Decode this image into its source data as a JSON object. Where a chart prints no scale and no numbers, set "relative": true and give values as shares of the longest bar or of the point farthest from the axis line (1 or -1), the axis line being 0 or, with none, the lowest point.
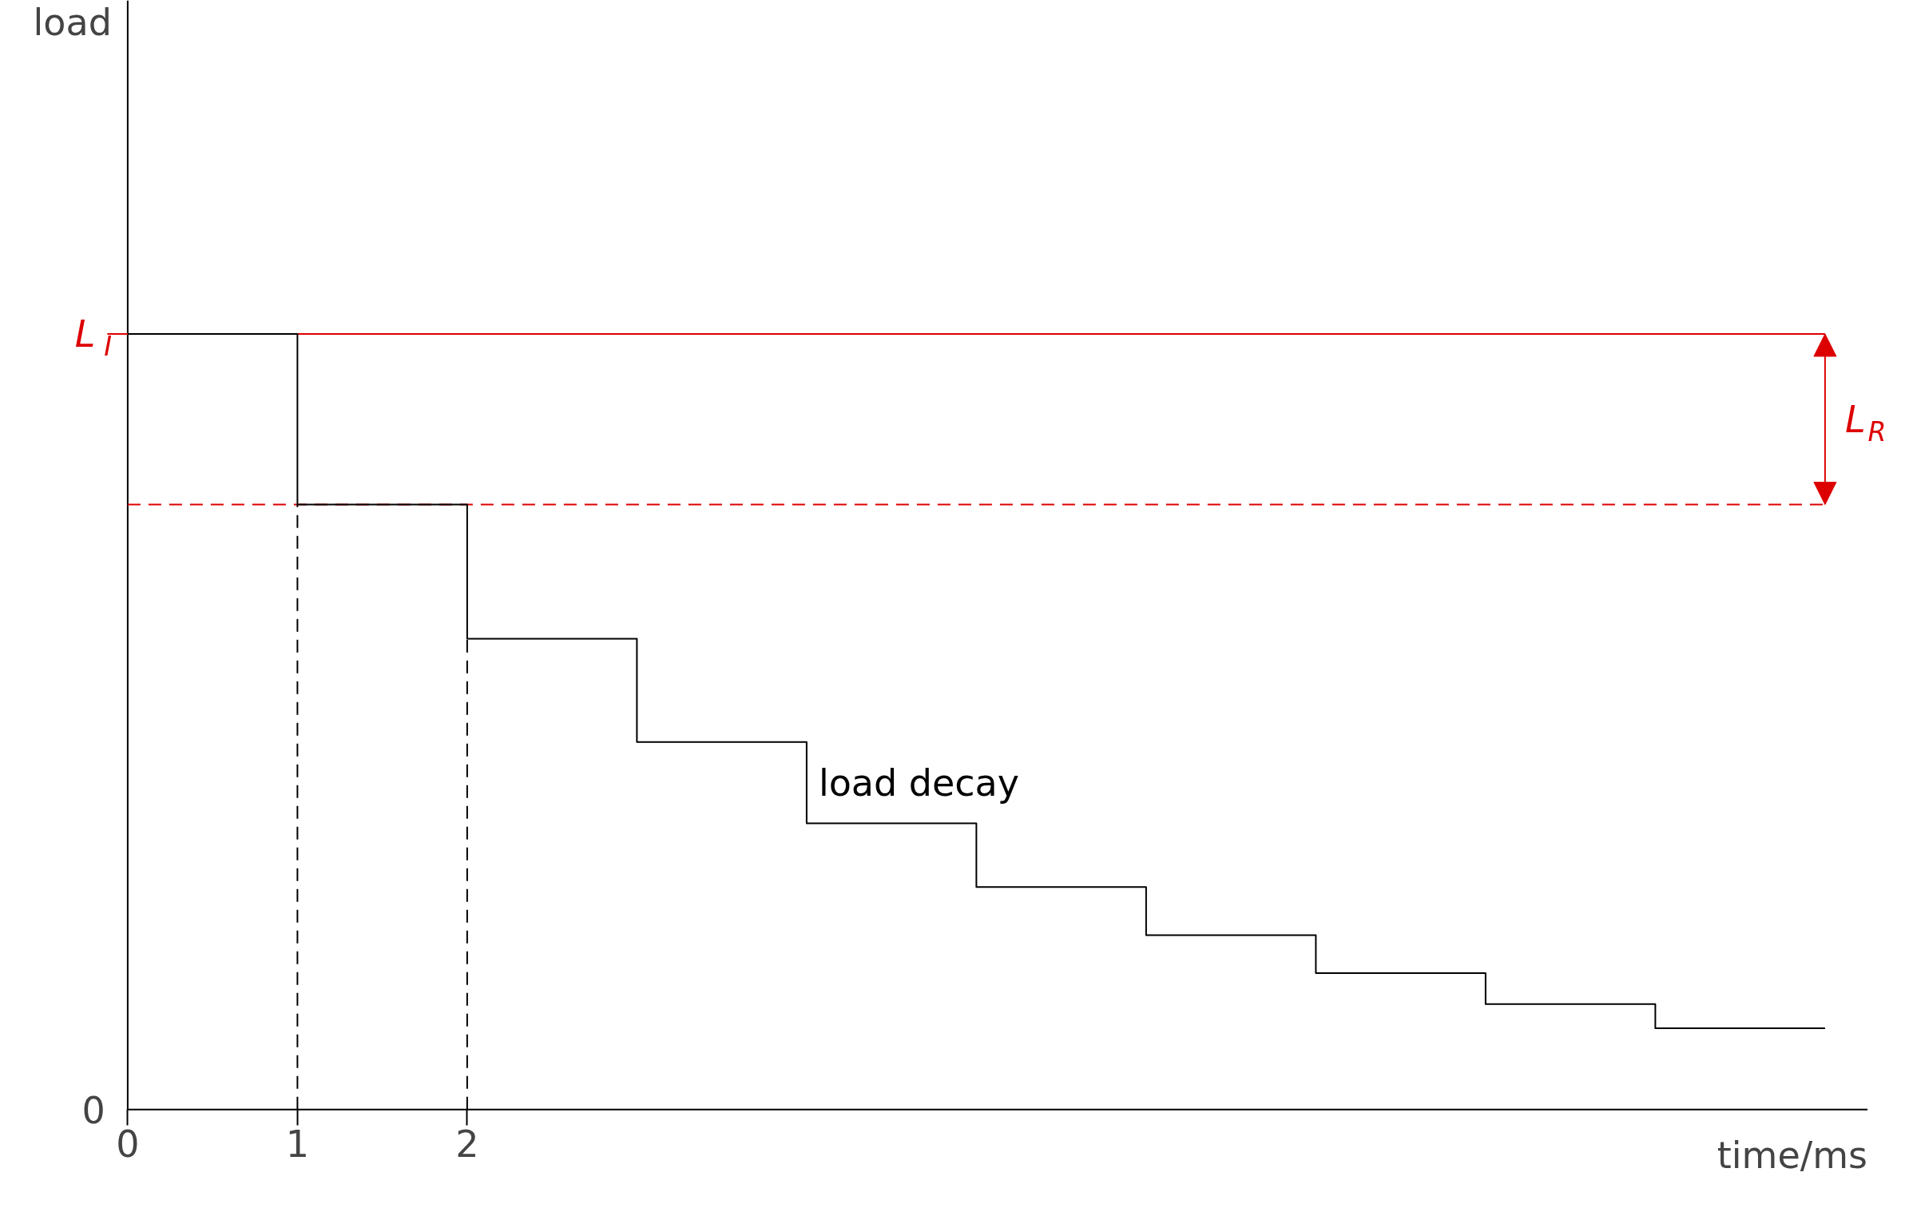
{
  "chart_data": {
    "type": "step",
    "relative": true,
    "xlabel": "time/ms",
    "xlim": [
      0,
      10.25
    ],
    "xticks": [
      0,
      1,
      2
    ],
    "series": [
      {
        "name": "load decay",
        "color": "#000000",
        "x": [
          0,
          1,
          2,
          3,
          4,
          5,
          6,
          7,
          8,
          9,
          10
        ],
        "values": [
          1.0,
          0.78,
          0.607,
          0.474,
          0.369,
          0.287,
          0.225,
          0.176,
          0.136,
          0.105,
          0.105
        ]
      }
    ],
    "ref_lines": [
      {
        "axis": "y",
        "value": 1.0,
        "label": "L$_{I}$",
        "color": "#dd0000",
        "line_style": "solid"
      },
      {
        "axis": "y",
        "value": 0.78,
        "label": null,
        "color": "#dd0000",
        "line_style": "dashed"
      },
      {
        "axis": "x",
        "value": 1,
        "label": null,
        "color": "#000000",
        "line_style": "dashed"
      },
      {
        "axis": "x",
        "value": 2,
        "label": null,
        "color": "#000000",
        "line_style": "dashed"
      }
    ],
    "annotations": [
      "0",
      "L$_{R}$",
      "load"
    ],
    "grid": false,
    "marker": "none",
    "line_style": "solid"
  }
}
